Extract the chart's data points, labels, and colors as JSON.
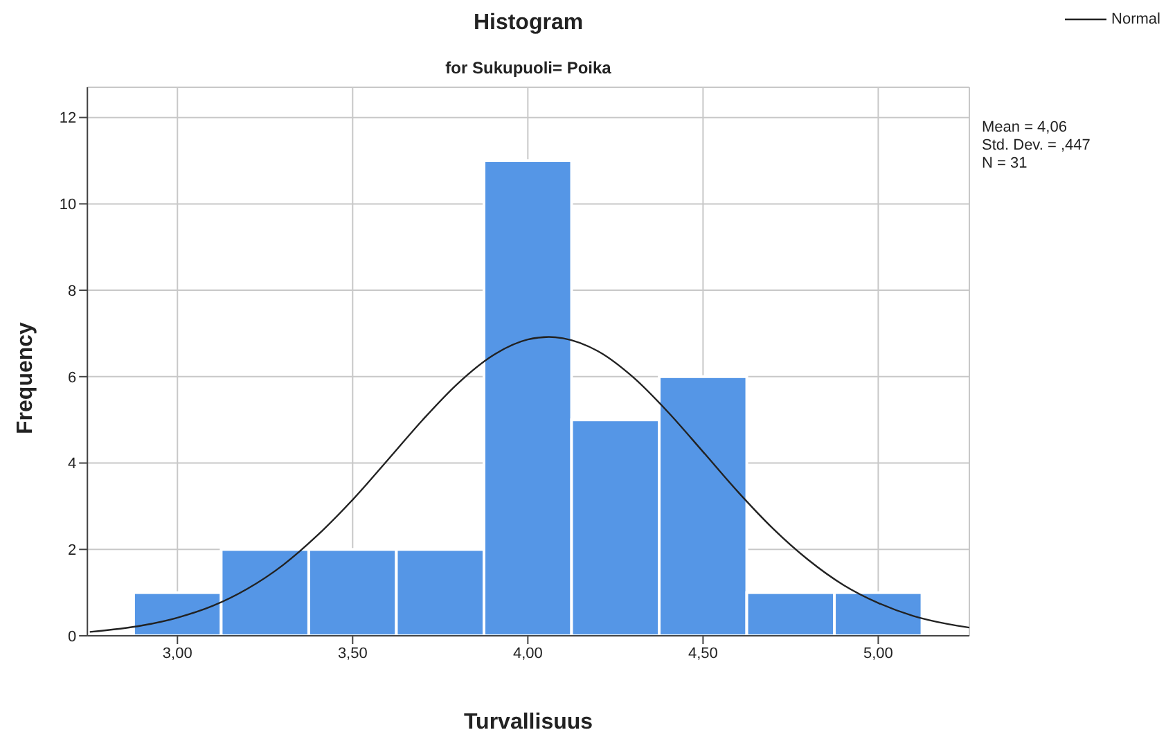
{
  "chart_data": {
    "type": "histogram",
    "title": "Histogram",
    "subtitle": "for Sukupuoli= Poika",
    "xlabel": "Turvallisuus",
    "ylabel": "Frequency",
    "bins": [
      2.875,
      3.125,
      3.375,
      3.625,
      3.875,
      4.125,
      4.375,
      4.625,
      4.875,
      5.125
    ],
    "series": [
      {
        "color": "#5596e6",
        "values": [
          1,
          2,
          2,
          2,
          11,
          5,
          6,
          1,
          1
        ]
      },
      {
        "type": "line",
        "name": "Normal",
        "color": "#222222",
        "x": [
          2.75,
          2.9,
          3.0,
          3.1,
          3.2,
          3.3,
          3.4,
          3.5,
          3.6,
          3.7,
          3.8,
          3.9,
          4.0,
          4.06,
          4.1,
          4.2,
          4.3,
          4.4,
          4.5,
          4.6,
          4.7,
          4.8,
          4.9,
          5.0,
          5.1,
          5.2,
          5.26
        ],
        "values": [
          0.09,
          0.24,
          0.42,
          0.69,
          1.09,
          1.63,
          2.33,
          3.15,
          4.07,
          5.0,
          5.84,
          6.49,
          6.86,
          6.92,
          6.89,
          6.59,
          5.99,
          5.18,
          4.26,
          3.33,
          2.48,
          1.76,
          1.18,
          0.76,
          0.46,
          0.27,
          0.19
        ]
      }
    ],
    "xlim": [
      2.743,
      5.26
    ],
    "xticks": [
      {
        "value": 3,
        "label": "3,00"
      },
      {
        "value": 3.5,
        "label": "3,50"
      },
      {
        "value": 4,
        "label": "4,00"
      },
      {
        "value": 4.5,
        "label": "4,50"
      },
      {
        "value": 5,
        "label": "5,00"
      }
    ],
    "ylim": [
      0,
      12.7
    ],
    "yticks": [
      0,
      2,
      4,
      6,
      8,
      10,
      12
    ],
    "grid": true,
    "legend": "top right",
    "marker": "none",
    "line_style": "solid",
    "annotations": [
      "Mean = 4,06",
      "Std. Dev. = ,447",
      "N = 31"
    ]
  }
}
